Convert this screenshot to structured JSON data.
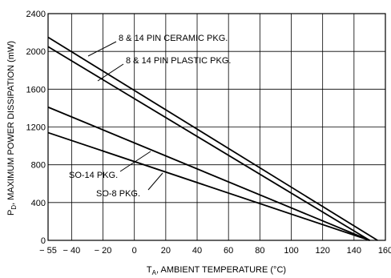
{
  "chart_data": {
    "type": "line",
    "xlabel": "T",
    "xlabel_sub": "A",
    "xlabel_rest": ", AMBIENT TEMPERATURE (°C)",
    "ylabel": "P",
    "ylabel_sub": "D",
    "ylabel_rest": ", MAXIMUM POWER DISSIPATION (mW)",
    "xlim": [
      -55,
      160
    ],
    "ylim": [
      0,
      2400
    ],
    "grid": true,
    "xticks": [
      -55,
      -40,
      -20,
      0,
      20,
      40,
      60,
      80,
      100,
      120,
      140,
      160
    ],
    "xtick_labels": [
      "− 55",
      "− 40",
      "− 20",
      "0",
      "20",
      "40",
      "60",
      "80",
      "100",
      "120",
      "140",
      "160"
    ],
    "yticks": [
      0,
      400,
      800,
      1200,
      1600,
      2000,
      2400
    ],
    "ytick_labels": [
      "0",
      "400",
      "800",
      "1200",
      "1600",
      "2000",
      "2400"
    ],
    "series": [
      {
        "name": "8 & 14 PIN CERAMIC PKG.",
        "x": [
          -55,
          155
        ],
        "y": [
          2150,
          0
        ]
      },
      {
        "name": "8 & 14 PIN PLASTIC PKG.",
        "x": [
          -55,
          150
        ],
        "y": [
          2050,
          0
        ]
      },
      {
        "name": "SO-14 PKG.",
        "x": [
          -55,
          150
        ],
        "y": [
          1410,
          0
        ]
      },
      {
        "name": "SO-8 PKG.",
        "x": [
          -55,
          150
        ],
        "y": [
          1140,
          0
        ]
      }
    ]
  }
}
